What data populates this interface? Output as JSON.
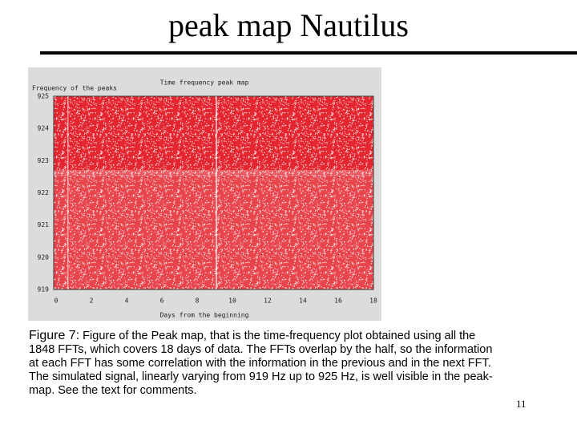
{
  "title": "peak map Nautilus",
  "figure": {
    "plot_title": "Time frequency peak map",
    "y_label": "Frequency of the peaks",
    "x_label": "Days from the beginning",
    "yticks": [
      "925",
      "924",
      "923",
      "922",
      "921",
      "920",
      "919"
    ],
    "xticks": [
      "0",
      "2",
      "4",
      "6",
      "8",
      "10",
      "12",
      "14",
      "16",
      "18"
    ]
  },
  "caption": {
    "label": "Figure 7:",
    "lines": [
      "Figure of the Peak map, that is the time-frequency plot obtained using all the",
      "1848 FFTs, which covers 18 days of data. The FFTs overlap by the half, so the information",
      "at each FFT has some correlation with the information in the previous and in the next FFT.",
      "The simulated signal, linearly varying from 919 Hz up to 925 Hz, is well visible in the peak-",
      "map. See the text for comments."
    ]
  },
  "page_number": "11"
}
